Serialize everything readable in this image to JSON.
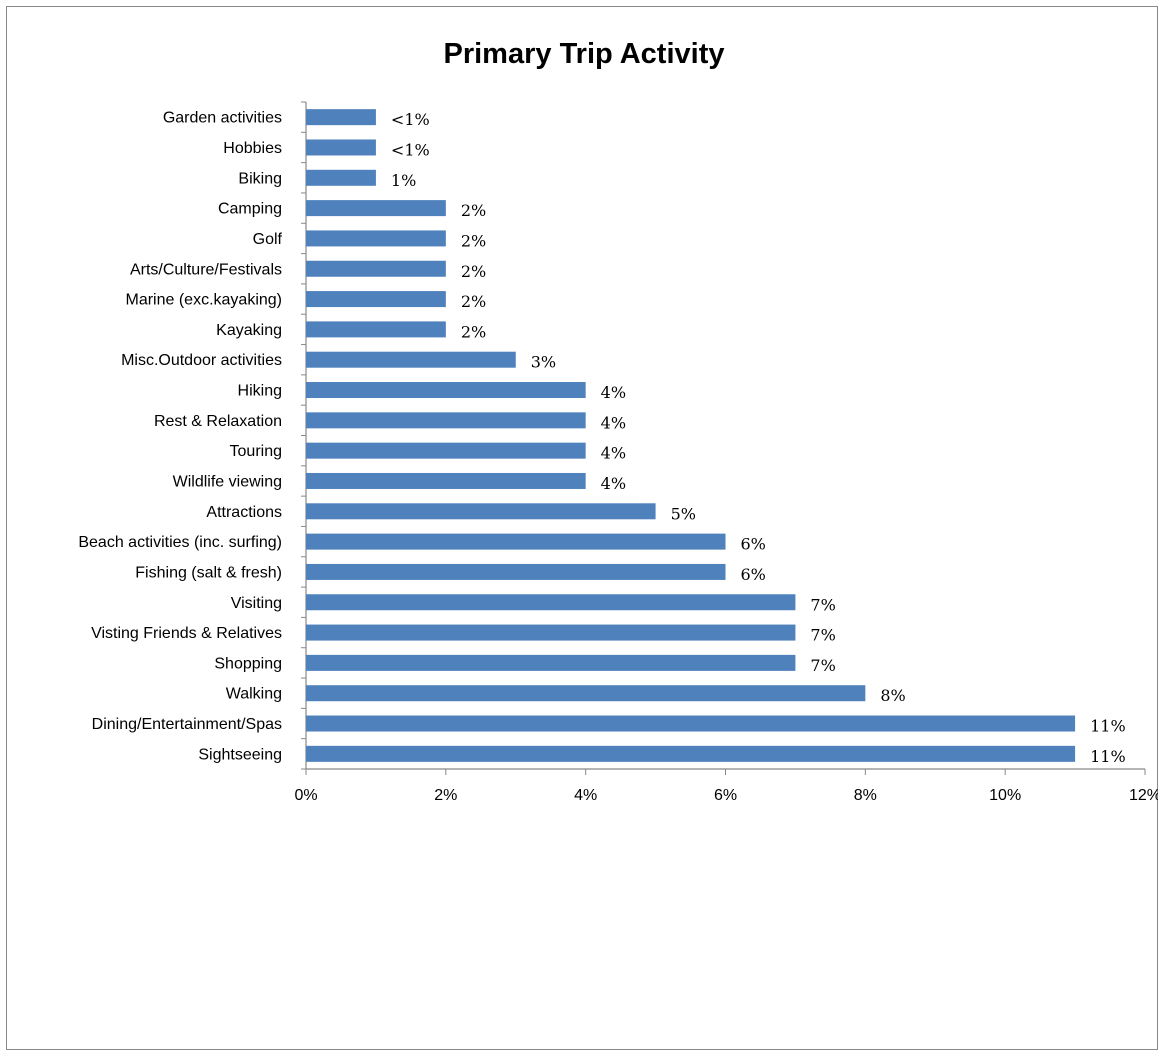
{
  "chart_data": {
    "type": "bar",
    "orientation": "horizontal",
    "title": "Primary Trip Activity",
    "xlabel": "",
    "ylabel": "",
    "xlim": [
      0,
      12
    ],
    "x_ticks": [
      0,
      2,
      4,
      6,
      8,
      10,
      12
    ],
    "x_tick_labels": [
      "0%",
      "2%",
      "4%",
      "6%",
      "8%",
      "10%",
      "12%"
    ],
    "bar_color": "#4f81bd",
    "grid": false,
    "legend": "none",
    "categories": [
      "Garden activities",
      "Hobbies",
      "Biking",
      "Camping",
      "Golf",
      "Arts/Culture/Festivals",
      "Marine (exc.kayaking)",
      "Kayaking",
      "Misc.Outdoor activities",
      "Hiking",
      "Rest & Relaxation",
      "Touring",
      "Wildlife viewing",
      "Attractions",
      "Beach activities (inc. surfing)",
      "Fishing (salt & fresh)",
      "Visiting",
      "Visting Friends & Relatives",
      "Shopping",
      "Walking",
      "Dining/Entertainment/Spas",
      "Sightseeing"
    ],
    "values": [
      1,
      1,
      1,
      2,
      2,
      2,
      2,
      2,
      3,
      4,
      4,
      4,
      4,
      5,
      6,
      6,
      7,
      7,
      7,
      8,
      11,
      11
    ],
    "data_labels": [
      "<1%",
      "<1%",
      "1%",
      "2%",
      "2%",
      "2%",
      "2%",
      "2%",
      "3%",
      "4%",
      "4%",
      "4%",
      "4%",
      "5%",
      "6%",
      "6%",
      "7%",
      "7%",
      "7%",
      "8%",
      "11%",
      "11%"
    ]
  }
}
